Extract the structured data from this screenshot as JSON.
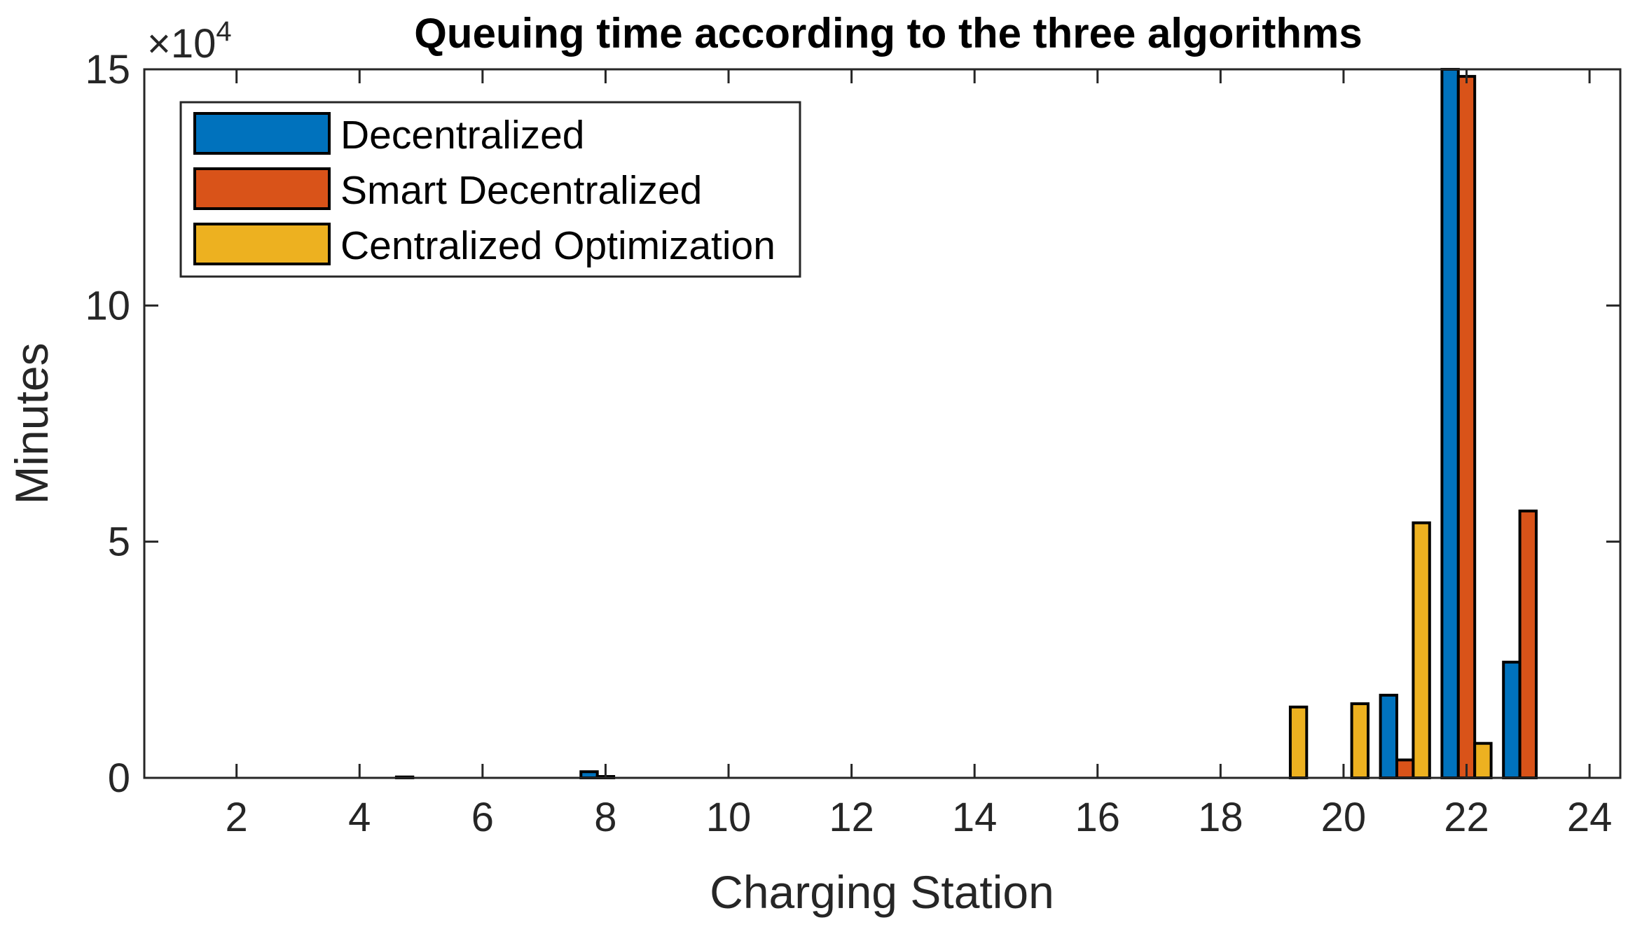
{
  "chart_data": {
    "type": "bar",
    "title": "Queuing time according to the three algorithms",
    "xlabel": "Charging Station",
    "ylabel": "Minutes",
    "y_exponent_label": "×10",
    "y_exponent_power": "4",
    "categories": [
      1,
      2,
      3,
      4,
      5,
      6,
      7,
      8,
      9,
      10,
      11,
      12,
      13,
      14,
      15,
      16,
      17,
      18,
      19,
      20,
      21,
      22,
      23,
      24
    ],
    "xlim": [
      0.5,
      24.5
    ],
    "ylim": [
      0,
      150000
    ],
    "xticks": [
      2,
      4,
      6,
      8,
      10,
      12,
      14,
      16,
      18,
      20,
      22,
      24
    ],
    "yticks": [
      0,
      50000,
      100000,
      150000
    ],
    "ytick_labels": [
      "0",
      "5",
      "10",
      "15"
    ],
    "grid": false,
    "legend_position": "top-left",
    "series": [
      {
        "name": "Decentralized",
        "color": "#0072BD",
        "values": [
          0,
          0,
          0,
          0,
          200,
          0,
          0,
          1300,
          0,
          0,
          0,
          0,
          0,
          0,
          0,
          0,
          0,
          0,
          0,
          0,
          17500,
          150000,
          24500,
          0
        ]
      },
      {
        "name": "Smart Decentralized",
        "color": "#D95319",
        "values": [
          0,
          0,
          0,
          0,
          0,
          0,
          0,
          300,
          0,
          0,
          0,
          0,
          0,
          0,
          0,
          0,
          0,
          0,
          0,
          0,
          3800,
          148500,
          56500,
          0
        ]
      },
      {
        "name": "Centralized Optimization",
        "color": "#EDB120",
        "values": [
          0,
          0,
          0,
          0,
          0,
          0,
          0,
          0,
          0,
          0,
          0,
          0,
          0,
          0,
          0,
          0,
          0,
          0,
          15000,
          15700,
          54000,
          7300,
          0,
          0
        ]
      }
    ]
  }
}
